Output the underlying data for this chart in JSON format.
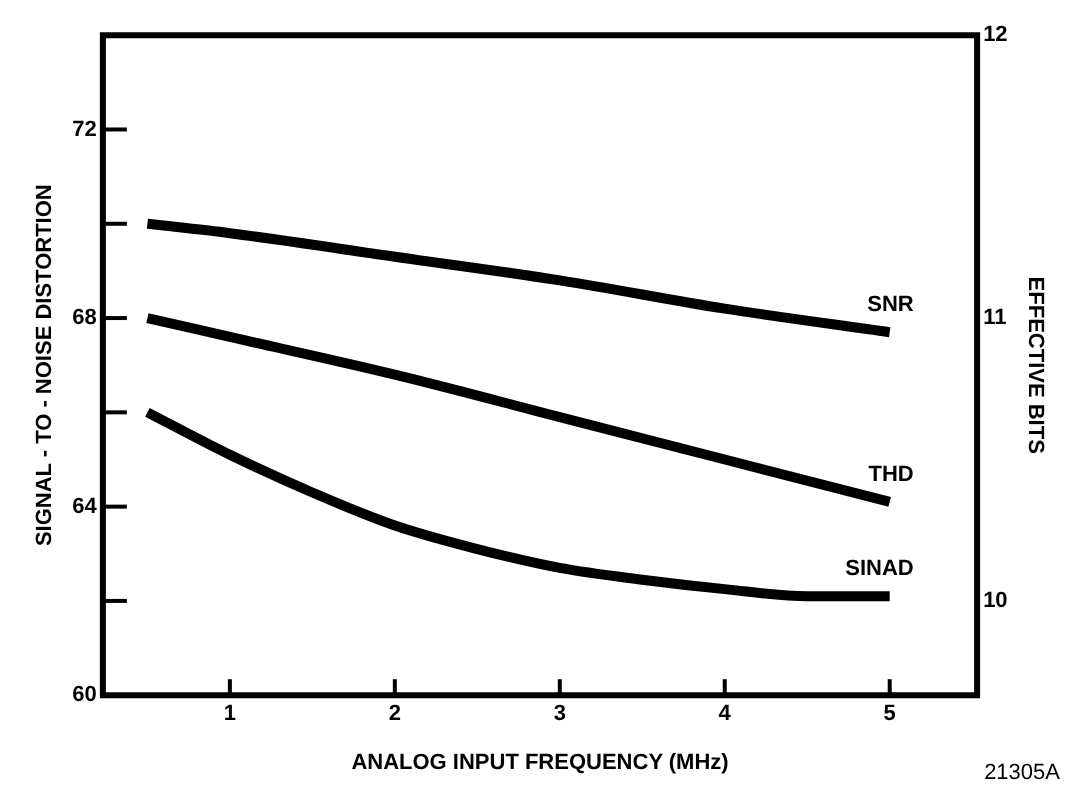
{
  "chart_data": {
    "type": "line",
    "xlabel": "ANALOG INPUT FREQUENCY (MHz)",
    "ylabel": "SIGNAL - TO - NOISE DISTORTION",
    "y2label": "EFFECTIVE BITS",
    "series": [
      {
        "name": "SNR",
        "color": "#000000",
        "x": [
          0.5,
          1,
          2,
          3,
          4,
          5
        ],
        "values": [
          70.0,
          69.8,
          69.3,
          68.8,
          68.2,
          67.7
        ]
      },
      {
        "name": "THD",
        "color": "#000000",
        "x": [
          0.5,
          1,
          2,
          3,
          4,
          5
        ],
        "values": [
          68.0,
          67.6,
          66.8,
          65.9,
          65.0,
          64.1
        ]
      },
      {
        "name": "SINAD",
        "color": "#000000",
        "x": [
          0.5,
          1,
          1.5,
          2,
          2.5,
          3,
          3.5,
          4,
          4.5,
          5
        ],
        "values": [
          66.0,
          65.1,
          64.3,
          63.6,
          63.1,
          62.7,
          62.45,
          62.25,
          62.1,
          62.1
        ]
      }
    ],
    "xlim": [
      0.23,
      5.53
    ],
    "xticks": [
      1,
      2,
      3,
      4,
      5
    ],
    "ylim": [
      60,
      74
    ],
    "yticks": [
      60,
      {
        "value": 62,
        "label": null
      },
      64,
      {
        "value": 66,
        "label": null
      },
      68,
      {
        "value": 70,
        "label": null
      },
      72
    ],
    "y2lim": [
      9.667,
      12
    ],
    "y2ticks": [
      10,
      11,
      12
    ],
    "marker": "none",
    "line_style": "solid",
    "legend": false,
    "annotations": [
      "21305A"
    ]
  }
}
